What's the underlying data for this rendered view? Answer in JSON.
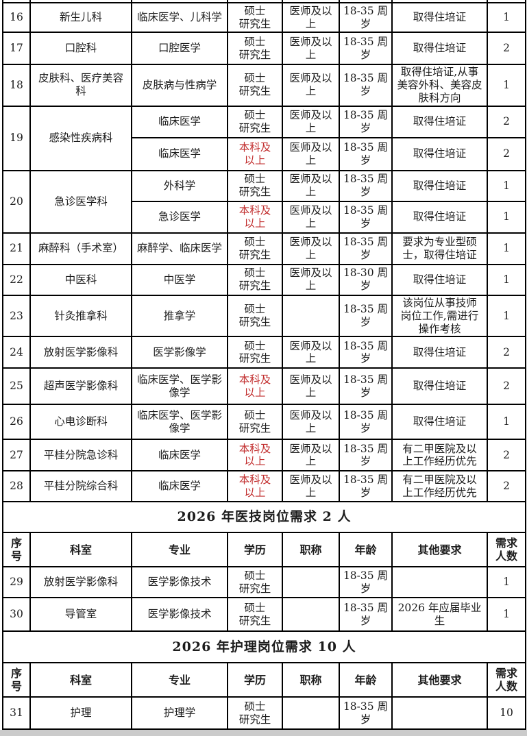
{
  "colors": {
    "text": "#1c1c1c",
    "red_text": "#c22f2f",
    "border": "#000000",
    "page_background": "#ffffff",
    "bottom_edge_strip": "#cbcbcb"
  },
  "table": {
    "column_headers": [
      "序\n号",
      "科室",
      "专业",
      "学历",
      "职称",
      "年龄",
      "其他要求",
      "需求\n人数"
    ],
    "lines": [
      {
        "kind": "partial"
      },
      {
        "kind": "data",
        "cells": [
          "16",
          "新生儿科",
          "临床医学、儿科学",
          "硕士\n研究生",
          "医师及以\n上",
          "18-35 周\n岁",
          "取得住培证",
          "1"
        ]
      },
      {
        "kind": "data",
        "cells": [
          "17",
          "口腔科",
          "口腔医学",
          "硕士\n研究生",
          "医师及以\n上",
          "18-35 周\n岁",
          "取得住培证",
          "2"
        ]
      },
      {
        "kind": "data",
        "cells": [
          "18",
          "皮肤科、医疗美容\n科",
          "皮肤病与性病学",
          "硕士\n研究生",
          "医师及以\n上",
          "18-35 周\n岁",
          "取得住培证,从事\n美容外科、美容皮\n肤科方向",
          "1"
        ]
      },
      {
        "kind": "data",
        "cells": [
          {
            "t": "19",
            "rs": 2
          },
          {
            "t": "感染性疾病科",
            "rs": 2
          },
          "临床医学",
          "硕士\n研究生",
          "医师及以\n上",
          "18-35 周\n岁",
          "取得住培证",
          "2"
        ]
      },
      {
        "kind": "data",
        "cells": [
          "临床医学",
          {
            "t": "本科及\n以上",
            "red": true
          },
          "医师及以\n上",
          "18-35 周\n岁",
          "取得住培证",
          "2"
        ]
      },
      {
        "kind": "data",
        "cells": [
          {
            "t": "20",
            "rs": 2
          },
          {
            "t": "急诊医学科",
            "rs": 2
          },
          "外科学",
          "硕士\n研究生",
          "医师及以\n上",
          "18-35 周\n岁",
          "取得住培证",
          "1"
        ]
      },
      {
        "kind": "data",
        "cells": [
          "急诊医学",
          {
            "t": "本科及\n以上",
            "red": true
          },
          "医师及以\n上",
          "18-35 周\n岁",
          "取得住培证",
          "1"
        ]
      },
      {
        "kind": "data",
        "cells": [
          "21",
          "麻醉科（手术室）",
          "麻醉学、临床医学",
          "硕士\n研究生",
          "医师及以\n上",
          "18-35 周\n岁",
          "要求为专业型硕\n士，取得住培证",
          "1"
        ]
      },
      {
        "kind": "data",
        "cells": [
          "22",
          "中医科",
          "中医学",
          "硕士\n研究生",
          "医师及以\n上",
          "18-30 周\n岁",
          "取得住培证",
          "1"
        ]
      },
      {
        "kind": "data",
        "cells": [
          "23",
          "针灸推拿科",
          "推拿学",
          "硕士\n研究生",
          "",
          "18-35 周\n岁",
          "该岗位从事技师\n岗位工作,需进行\n操作考核",
          "1"
        ]
      },
      {
        "kind": "data",
        "cells": [
          "24",
          "放射医学影像科",
          "医学影像学",
          "硕士\n研究生",
          "医师及以\n上",
          "18-35 周\n岁",
          "取得住培证",
          "2"
        ]
      },
      {
        "kind": "data",
        "cells": [
          "25",
          "超声医学影像科",
          "临床医学、医学影\n像学",
          {
            "t": "本科及\n以上",
            "red": true
          },
          "医师及以\n上",
          "18-35 周\n岁",
          "取得住培证",
          "2"
        ]
      },
      {
        "kind": "data",
        "cells": [
          "26",
          "心电诊断科",
          "临床医学、医学影\n像学",
          "硕士\n研究生",
          "医师及以\n上",
          "18-35 周\n岁",
          "取得住培证",
          "1"
        ]
      },
      {
        "kind": "data",
        "cells": [
          "27",
          "平桂分院急诊科",
          "临床医学",
          {
            "t": "本科及\n以上",
            "red": true
          },
          "医师及以\n上",
          "18-35 周\n岁",
          "有二甲医院及以\n上工作经历优先",
          "2"
        ]
      },
      {
        "kind": "data",
        "cells": [
          "28",
          "平桂分院综合科",
          "临床医学",
          {
            "t": "本科及\n以上",
            "red": true
          },
          "医师及以\n上",
          "18-35 周\n岁",
          "有二甲医院及以\n上工作经历优先",
          "2"
        ]
      },
      {
        "kind": "section",
        "text": "2026 年医技岗位需求 2 人"
      },
      {
        "kind": "header"
      },
      {
        "kind": "data",
        "cells": [
          "29",
          "放射医学影像科",
          "医学影像技术",
          "硕士\n研究生",
          "",
          "18-35 周\n岁",
          "",
          "1"
        ]
      },
      {
        "kind": "data",
        "cells": [
          "30",
          "导管室",
          "医学影像技术",
          "硕士\n研究生",
          "",
          "18-35 周\n岁",
          "2026 年应届毕业\n生",
          "1"
        ]
      },
      {
        "kind": "section",
        "text": "2026 年护理岗位需求 10 人"
      },
      {
        "kind": "header"
      },
      {
        "kind": "data",
        "cells": [
          "31",
          "护理",
          "护理学",
          "硕士\n研究生",
          "",
          "18-35 周\n岁",
          "",
          "10"
        ]
      }
    ]
  }
}
